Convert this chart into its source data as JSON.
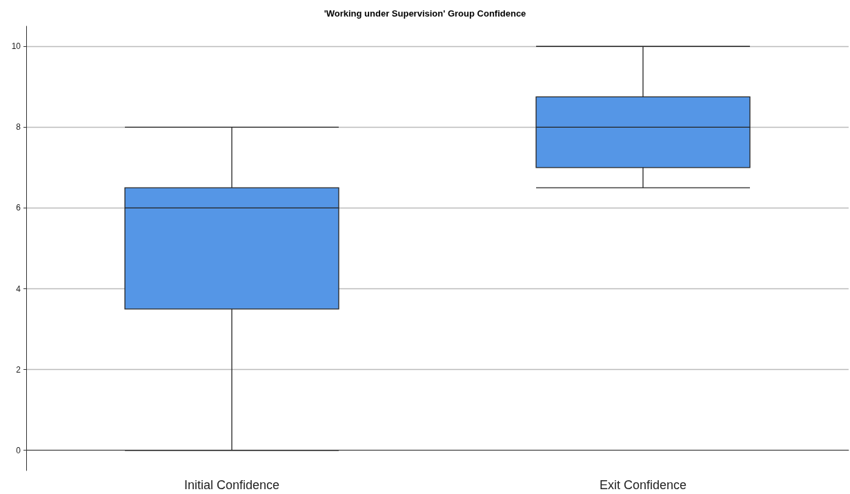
{
  "chart_data": {
    "type": "box",
    "title": "'Working under Supervision' Group Confidence",
    "categories": [
      "Initial Confidence",
      "Exit Confidence"
    ],
    "boxes": [
      {
        "low": 0,
        "q1": 3.5,
        "median": 6,
        "q3": 6.5,
        "high": 8
      },
      {
        "low": 6.5,
        "q1": 7,
        "median": 8,
        "q3": 8.75,
        "high": 10
      }
    ],
    "color": "#5596e6",
    "ylim": [
      -0.5,
      10.5
    ],
    "yticks": [
      0,
      2,
      4,
      6,
      8,
      10
    ],
    "grid": "y"
  }
}
